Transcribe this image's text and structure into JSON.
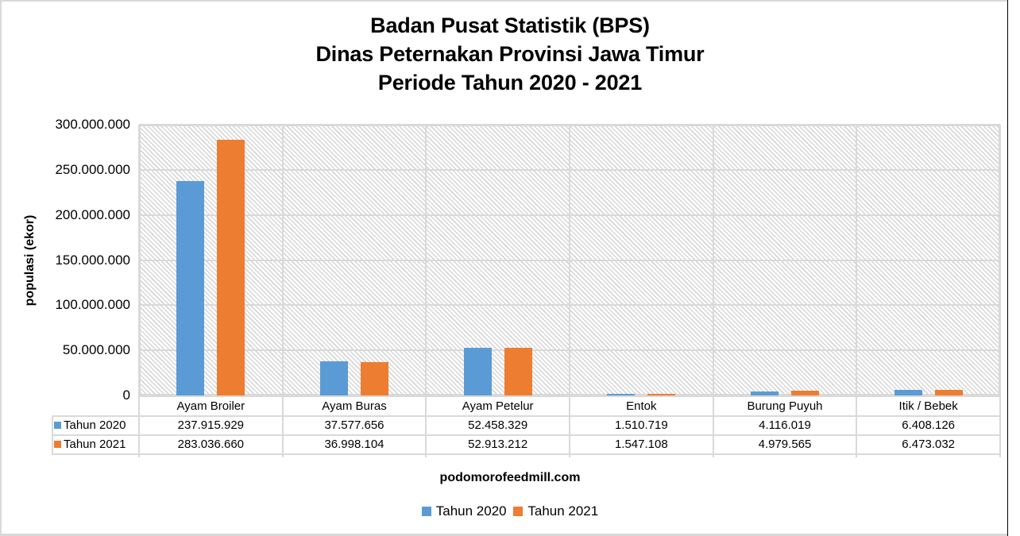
{
  "chart_data": {
    "type": "bar",
    "title": "Badan Pusat Statistik (BPS)\nDinas Peternakan Provinsi Jawa Timur\nPeriode Tahun 2020 - 2021",
    "title_lines": [
      "Badan Pusat Statistik (BPS)",
      "Dinas Peternakan Provinsi Jawa Timur",
      "Periode Tahun 2020 - 2021"
    ],
    "xlabel": "",
    "ylabel": "populasi (ekor)",
    "ylim": [
      0,
      300000000
    ],
    "yticks": [
      0,
      50000000,
      100000000,
      150000000,
      200000000,
      250000000,
      300000000
    ],
    "ytick_labels": [
      "0",
      "50.000.000",
      "100.000.000",
      "150.000.000",
      "200.000.000",
      "250.000.000",
      "300.000.000"
    ],
    "grid": true,
    "legend_position": "bottom",
    "has_data_table": true,
    "categories": [
      "Ayam Broiler",
      "Ayam Buras",
      "Ayam Petelur",
      "Entok",
      "Burung Puyuh",
      "Itik / Bebek"
    ],
    "series": [
      {
        "name": "Tahun 2020",
        "color": "#5b9bd5",
        "values": [
          237915929,
          37577656,
          52458329,
          1510719,
          4116019,
          6408126
        ],
        "labels": [
          "237.915.929",
          "37.577.656",
          "52.458.329",
          "1.510.719",
          "4.116.019",
          "6.408.126"
        ]
      },
      {
        "name": "Tahun 2021",
        "color": "#ed7d31",
        "values": [
          283036660,
          36998104,
          52913212,
          1547108,
          4979565,
          6473032
        ],
        "labels": [
          "283.036.660",
          "36.998.104",
          "52.913.212",
          "1.547.108",
          "4.979.565",
          "6.473.032"
        ]
      }
    ],
    "annotation": "podomorofeedmill.com"
  },
  "legend": {
    "items": [
      {
        "label": "Tahun 2020",
        "color": "#5b9bd5"
      },
      {
        "label": "Tahun 2021",
        "color": "#ed7d31"
      }
    ]
  }
}
